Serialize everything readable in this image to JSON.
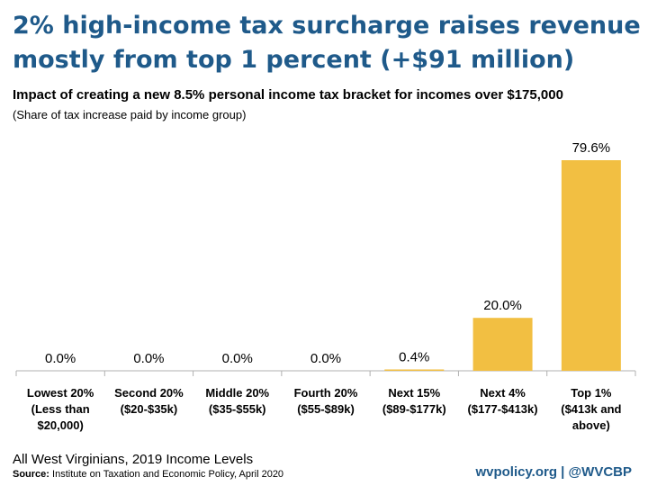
{
  "title_line1": "2% high-income tax surcharge raises revenue",
  "title_line2": "mostly from top 1 percent (+$91 million)",
  "subtitle": "Impact of creating a new 8.5% personal income tax bracket for incomes over $175,000",
  "subnote": "(Share of tax increase paid by income group)",
  "footnote": "All West Virginians, 2019 Income Levels",
  "source_label": "Source:",
  "source_text": " Institute on Taxation and Economic Policy, April 2020",
  "brand": "wvpolicy.org  |  @WVCBP",
  "colors": {
    "bar": "#f2bf42",
    "title": "#1f5a8a",
    "axis": "#b0b0b0"
  },
  "chart_data": {
    "type": "bar",
    "categories": [
      [
        "Lowest 20%",
        "(Less than",
        "$20,000)"
      ],
      [
        "Second 20%",
        "($20-$35k)"
      ],
      [
        "Middle 20%",
        "($35-$55k)"
      ],
      [
        "Fourth 20%",
        "($55-$89k)"
      ],
      [
        "Next 15%",
        "($89-$177k)"
      ],
      [
        "Next 4%",
        "($177-$413k)"
      ],
      [
        "Top 1%",
        "($413k and",
        "above)"
      ]
    ],
    "values": [
      0.0,
      0.0,
      0.0,
      0.0,
      0.4,
      20.0,
      79.6
    ],
    "value_labels": [
      "0.0%",
      "0.0%",
      "0.0%",
      "0.0%",
      "0.4%",
      "20.0%",
      "79.6%"
    ],
    "ylim": [
      0,
      80
    ],
    "grid": false,
    "legend": "none"
  }
}
